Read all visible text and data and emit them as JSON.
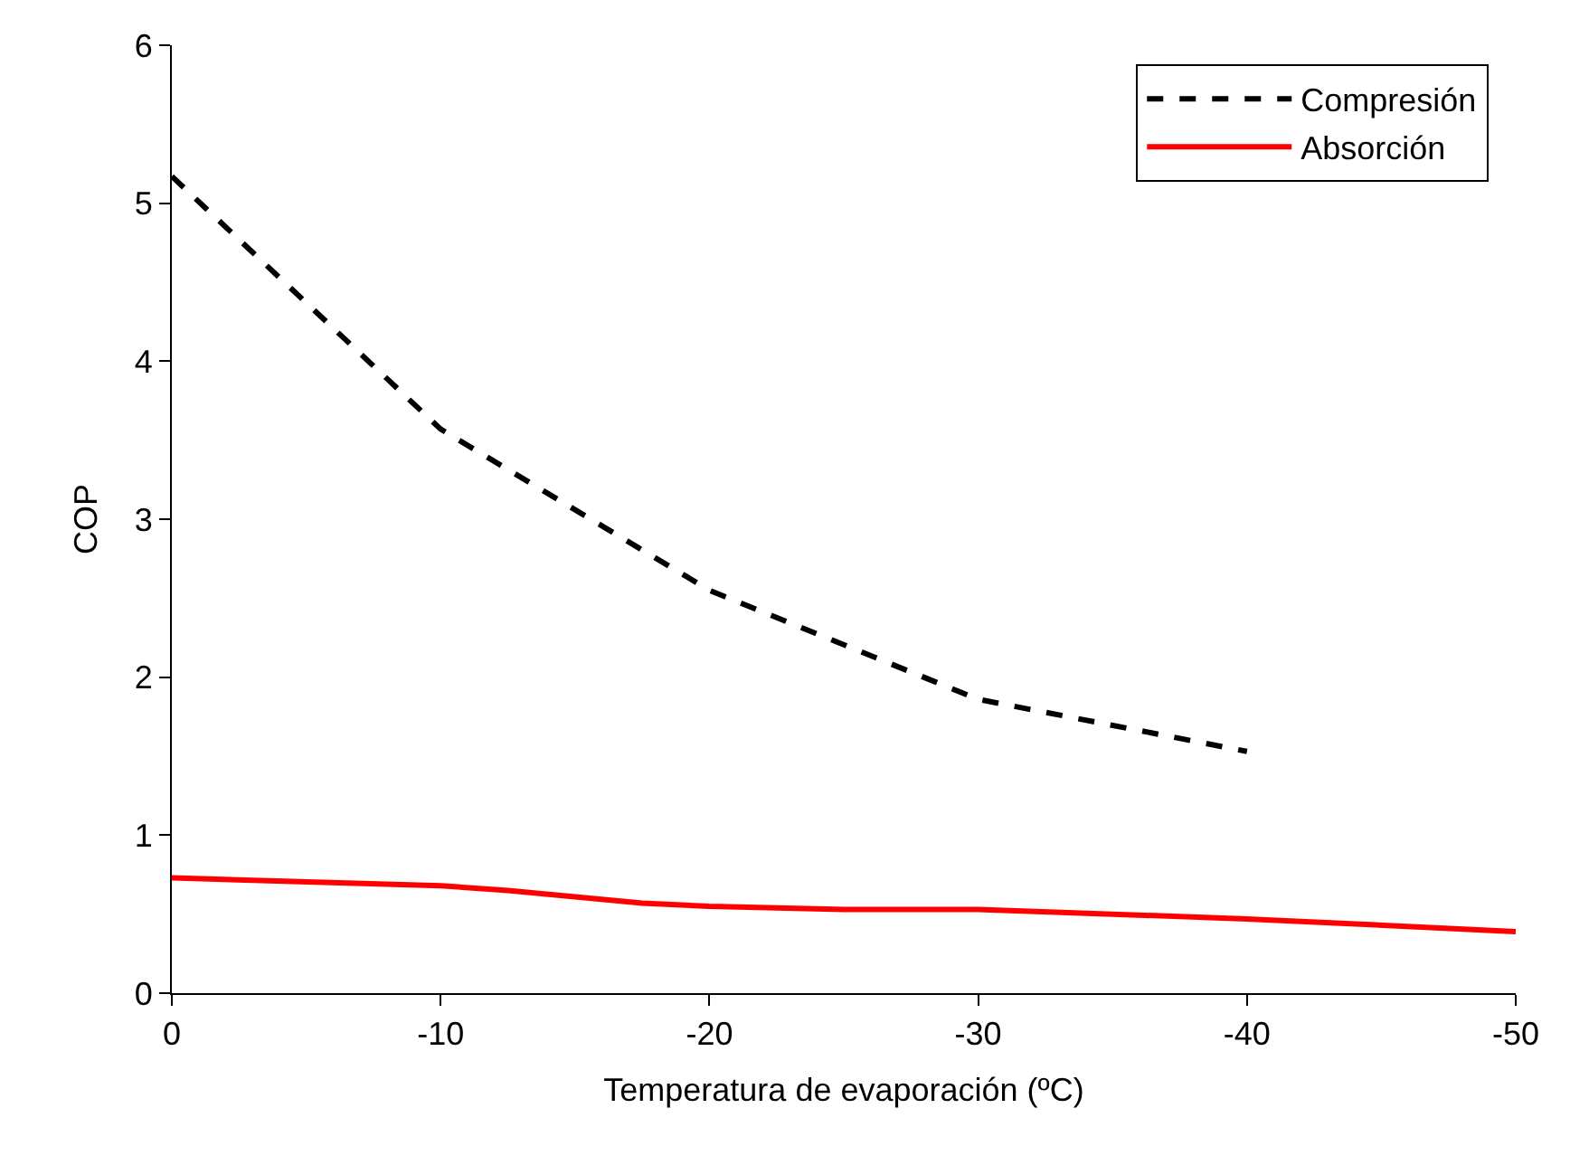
{
  "chart_data": {
    "type": "line",
    "xlabel": "Temperatura de evaporación (ºC)",
    "ylabel": "COP",
    "xlim": [
      0,
      -50
    ],
    "xticks": [
      0,
      -10,
      -20,
      -30,
      -40,
      -50
    ],
    "ylim": [
      0,
      6
    ],
    "yticks": [
      0,
      1,
      2,
      3,
      4,
      5,
      6
    ],
    "legend": "top right",
    "marker": "none",
    "series": [
      {
        "name": "Compresión",
        "color": "#000000",
        "line_style": "dashed",
        "x": [
          0,
          -10,
          -20,
          -30,
          -40
        ],
        "values": [
          5.17,
          3.57,
          2.55,
          1.86,
          1.53
        ]
      },
      {
        "name": "Absorción",
        "color": "#ff0000",
        "line_style": "solid",
        "x": [
          0,
          -10,
          -12.5,
          -17.5,
          -20,
          -25,
          -30,
          -35,
          -40,
          -50
        ],
        "values": [
          0.73,
          0.68,
          0.65,
          0.57,
          0.55,
          0.53,
          0.53,
          0.5,
          0.47,
          0.39
        ]
      }
    ]
  }
}
